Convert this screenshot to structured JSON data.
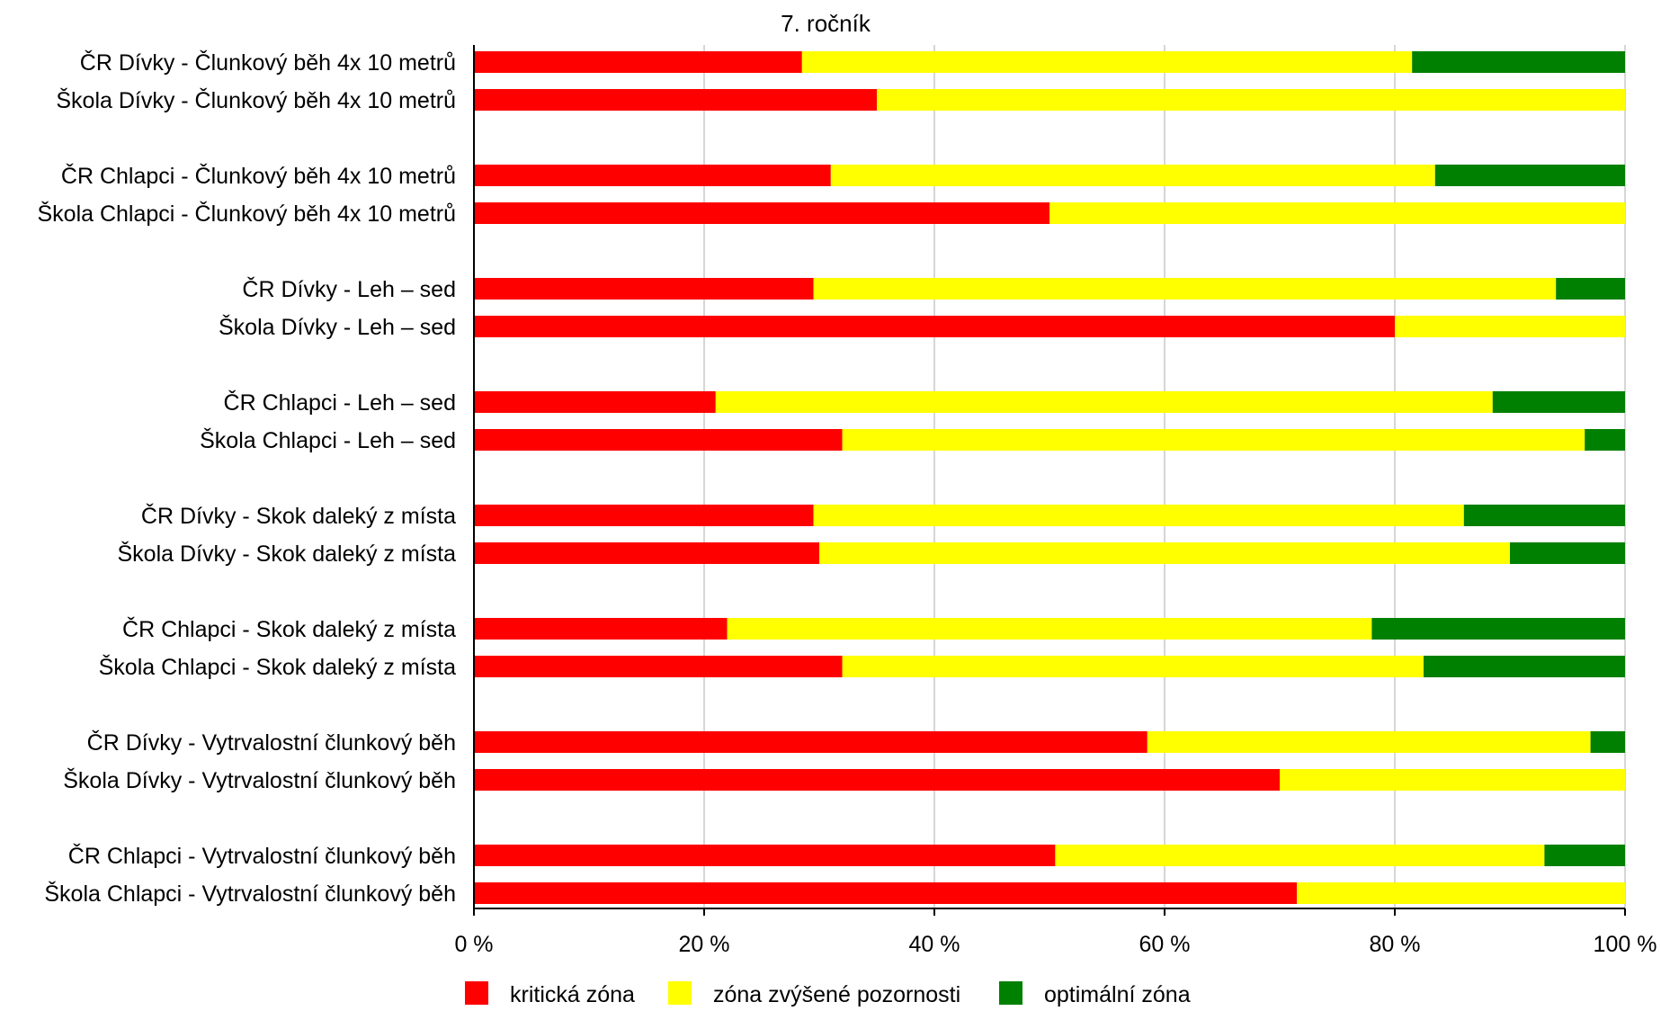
{
  "chart_data": {
    "type": "bar",
    "orientation": "horizontal",
    "stacked": true,
    "title": "7. ročník",
    "xlabel": "",
    "ylabel": "",
    "xlim": [
      0,
      100
    ],
    "x_ticks": [
      "0 %",
      "20 %",
      "40 %",
      "60 %",
      "80 %",
      "100 %"
    ],
    "grid": true,
    "legend_position": "bottom",
    "categories": [
      "ČR Dívky - Člunkový běh 4x 10 metrů",
      "Škola Dívky - Člunkový běh 4x 10 metrů",
      "ČR Chlapci - Člunkový běh 4x 10 metrů",
      "Škola Chlapci - Člunkový běh 4x 10 metrů",
      "ČR Dívky - Leh – sed",
      "Škola Dívky - Leh – sed",
      "ČR Chlapci - Leh – sed",
      "Škola Chlapci - Leh – sed",
      "ČR Dívky - Skok daleký z místa",
      "Škola Dívky - Skok daleký z místa",
      "ČR Chlapci - Skok daleký z místa",
      "Škola Chlapci - Skok daleký z místa",
      "ČR Dívky - Vytrvalostní člunkový běh",
      "Škola Dívky - Vytrvalostní člunkový běh",
      "ČR Chlapci - Vytrvalostní člunkový běh",
      "Škola Chlapci - Vytrvalostní člunkový běh"
    ],
    "series": [
      {
        "name": "kritická zóna",
        "color": "#ff0000",
        "values": [
          28.5,
          35,
          31,
          50,
          29.5,
          80,
          21,
          32,
          29.5,
          30,
          22,
          32,
          58.5,
          70,
          50.5,
          71.5
        ]
      },
      {
        "name": "zóna zvýšené pozornosti",
        "color": "#ffff00",
        "values": [
          53,
          65,
          52.5,
          50,
          64.5,
          20,
          67.5,
          64.5,
          56.5,
          60,
          56,
          50.5,
          38.5,
          30,
          42.5,
          28.5
        ]
      },
      {
        "name": "optimální zóna",
        "color": "#008000",
        "values": [
          18.5,
          0,
          16.5,
          0,
          6,
          0,
          11.5,
          3.5,
          14,
          10,
          22,
          17.5,
          3,
          0,
          7,
          0
        ]
      }
    ]
  }
}
